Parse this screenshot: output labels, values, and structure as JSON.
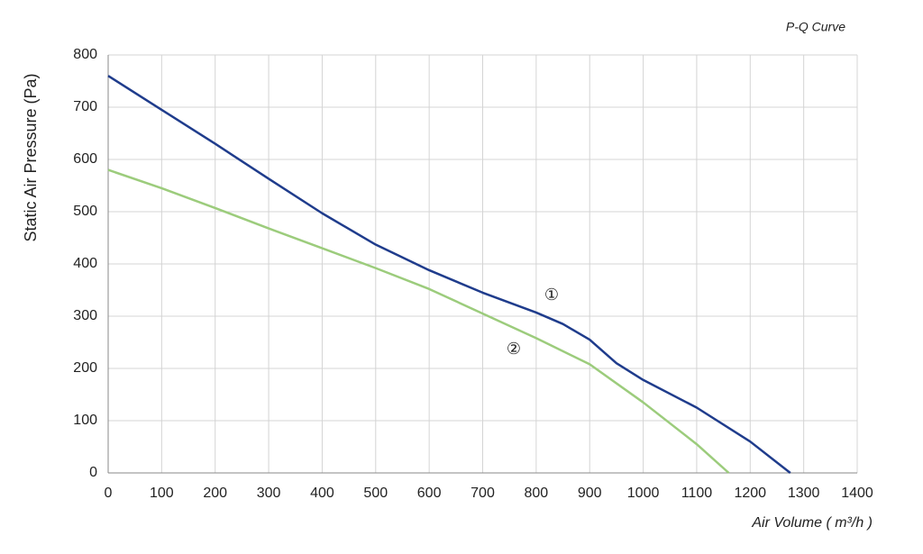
{
  "chart_data": {
    "type": "line",
    "title": "P-Q Curve",
    "x_label": "Air Volume ( m³/h )",
    "y_label": "Static Air Pressure  (Pa)",
    "xlim": [
      0,
      1400
    ],
    "xticks": [
      0,
      100,
      200,
      300,
      400,
      500,
      600,
      700,
      800,
      900,
      1000,
      1100,
      1200,
      1300,
      1400
    ],
    "ylim": [
      0,
      800
    ],
    "yticks": [
      0,
      100,
      200,
      300,
      400,
      500,
      600,
      700,
      800
    ],
    "grid": true,
    "series": [
      {
        "name": "①",
        "color": "#1f3c8c",
        "x": [
          0,
          100,
          200,
          300,
          400,
          500,
          600,
          700,
          800,
          850,
          900,
          950,
          1000,
          1100,
          1200,
          1275
        ],
        "values": [
          760,
          695,
          630,
          563,
          497,
          437,
          388,
          345,
          307,
          285,
          255,
          210,
          178,
          125,
          60,
          0
        ]
      },
      {
        "name": "②",
        "color": "#9ccc7c",
        "x": [
          0,
          100,
          200,
          300,
          400,
          500,
          600,
          700,
          800,
          900,
          1000,
          1100,
          1160
        ],
        "values": [
          580,
          545,
          507,
          468,
          430,
          392,
          352,
          305,
          258,
          208,
          135,
          55,
          0
        ]
      }
    ]
  }
}
